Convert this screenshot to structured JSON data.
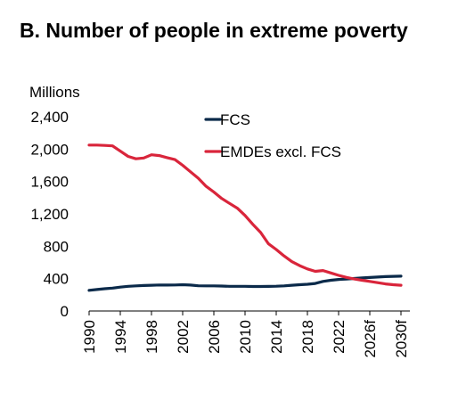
{
  "chart_data": {
    "type": "line",
    "title": "B. Number of people in extreme poverty",
    "ylabel": "Millions",
    "xlabel": "",
    "ylim": [
      0,
      2400
    ],
    "yticks": [
      "0",
      "400",
      "800",
      "1,200",
      "1,600",
      "2,000",
      "2,400"
    ],
    "ytick_values": [
      0,
      400,
      800,
      1200,
      1600,
      2000,
      2400
    ],
    "xlim": [
      1990,
      2030
    ],
    "xticks": [
      "1990",
      "1994",
      "1998",
      "2002",
      "2006",
      "2010",
      "2014",
      "2018",
      "2022",
      "2026f",
      "2030f"
    ],
    "xtick_values": [
      1990,
      1994,
      1998,
      2002,
      2006,
      2010,
      2014,
      2018,
      2022,
      2026,
      2030
    ],
    "grid": false,
    "legend_position": "top-center",
    "x": [
      1990,
      1991,
      1992,
      1993,
      1994,
      1995,
      1996,
      1997,
      1998,
      1999,
      2000,
      2001,
      2002,
      2003,
      2004,
      2005,
      2006,
      2007,
      2008,
      2009,
      2010,
      2011,
      2012,
      2013,
      2014,
      2015,
      2016,
      2017,
      2018,
      2019,
      2020,
      2021,
      2022,
      2023,
      2024,
      2025,
      2026,
      2027,
      2028,
      2029,
      2030
    ],
    "series": [
      {
        "name": "FCS",
        "color": "#0b2a4a",
        "values": [
          255,
          265,
          275,
          283,
          295,
          305,
          310,
          315,
          318,
          322,
          320,
          322,
          325,
          320,
          312,
          310,
          310,
          308,
          305,
          305,
          305,
          303,
          303,
          304,
          306,
          310,
          318,
          325,
          330,
          340,
          365,
          380,
          390,
          395,
          402,
          408,
          414,
          420,
          425,
          428,
          430
        ]
      },
      {
        "name": "EMDEs excl. FCS",
        "color": "#d9253b",
        "values": [
          2050,
          2050,
          2045,
          2040,
          1975,
          1910,
          1880,
          1890,
          1930,
          1920,
          1895,
          1870,
          1800,
          1720,
          1640,
          1540,
          1470,
          1390,
          1330,
          1270,
          1180,
          1070,
          970,
          830,
          760,
          680,
          610,
          560,
          520,
          490,
          500,
          470,
          440,
          415,
          395,
          380,
          365,
          350,
          335,
          325,
          318
        ]
      }
    ]
  }
}
